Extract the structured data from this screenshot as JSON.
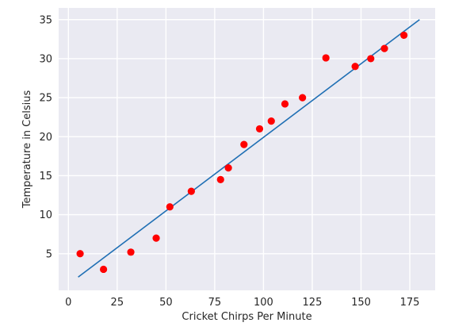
{
  "chart_data": {
    "type": "scatter",
    "title": "",
    "xlabel": "Cricket Chirps Per Minute",
    "ylabel": "Temperature in Celsius",
    "xlim": [
      -5,
      188
    ],
    "ylim": [
      0.3,
      36.5
    ],
    "x_ticks": [
      0,
      25,
      50,
      75,
      100,
      125,
      150,
      175
    ],
    "y_ticks": [
      5,
      10,
      15,
      20,
      25,
      30,
      35
    ],
    "grid": true,
    "legend": "none",
    "colors": {
      "background": "#eaeaf2",
      "grid": "#ffffff",
      "points": "#ff0000",
      "fit_line": "#1f6fb4"
    },
    "points": [
      {
        "x": 6,
        "y": 5
      },
      {
        "x": 18,
        "y": 3
      },
      {
        "x": 32,
        "y": 5.2
      },
      {
        "x": 45,
        "y": 7
      },
      {
        "x": 52,
        "y": 11
      },
      {
        "x": 63,
        "y": 13
      },
      {
        "x": 78,
        "y": 14.5
      },
      {
        "x": 82,
        "y": 16
      },
      {
        "x": 90,
        "y": 19
      },
      {
        "x": 98,
        "y": 21
      },
      {
        "x": 104,
        "y": 22
      },
      {
        "x": 111,
        "y": 24.2
      },
      {
        "x": 120,
        "y": 25
      },
      {
        "x": 132,
        "y": 30.1
      },
      {
        "x": 147,
        "y": 29
      },
      {
        "x": 155,
        "y": 30
      },
      {
        "x": 162,
        "y": 31.3
      },
      {
        "x": 172,
        "y": 33
      }
    ],
    "fit_line": {
      "x": [
        5,
        180
      ],
      "y": [
        2,
        35
      ]
    }
  }
}
